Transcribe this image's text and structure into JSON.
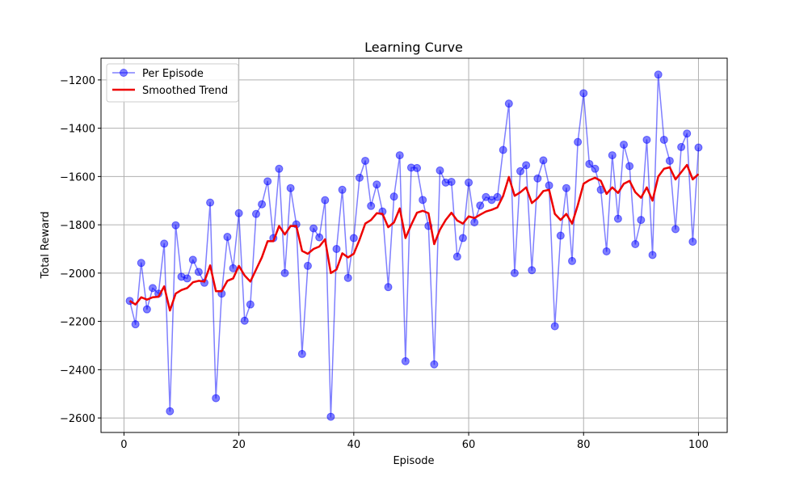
{
  "chart_data": {
    "type": "line",
    "title": "Learning Curve",
    "xlabel": "Episode",
    "ylabel": "Total Reward",
    "xlim": [
      -4,
      105
    ],
    "ylim": [
      -2660,
      -1110
    ],
    "xticks": [
      0,
      20,
      40,
      60,
      80,
      100
    ],
    "yticks": [
      -2600,
      -2400,
      -2200,
      -2000,
      -1800,
      -1600,
      -1400,
      -1200
    ],
    "grid": true,
    "legend": "top-left",
    "x": [
      1,
      2,
      3,
      4,
      5,
      6,
      7,
      8,
      9,
      10,
      11,
      12,
      13,
      14,
      15,
      16,
      17,
      18,
      19,
      20,
      21,
      22,
      23,
      24,
      25,
      26,
      27,
      28,
      29,
      30,
      31,
      32,
      33,
      34,
      35,
      36,
      37,
      38,
      39,
      40,
      41,
      42,
      43,
      44,
      45,
      46,
      47,
      48,
      49,
      50,
      51,
      52,
      53,
      54,
      55,
      56,
      57,
      58,
      59,
      60,
      61,
      62,
      63,
      64,
      65,
      66,
      67,
      68,
      69,
      70,
      71,
      72,
      73,
      74,
      75,
      76,
      77,
      78,
      79,
      80,
      81,
      82,
      83,
      84,
      85,
      86,
      87,
      88,
      89,
      90,
      91,
      92,
      93,
      94,
      95,
      96,
      97,
      98,
      99,
      100
    ],
    "series": [
      {
        "name": "Per Episode",
        "color": "#0000ff",
        "style": "line-markers",
        "values": [
          -2115,
          -2212,
          -1958,
          -2150,
          -2062,
          -2085,
          -1878,
          -2572,
          -1802,
          -2015,
          -2022,
          -1945,
          -1995,
          -2040,
          -1708,
          -2518,
          -2085,
          -1850,
          -1980,
          -1752,
          -2197,
          -2130,
          -1755,
          -1715,
          -1620,
          -1855,
          -1568,
          -2000,
          -1648,
          -1798,
          -2335,
          -1970,
          -1815,
          -1852,
          -1698,
          -2595,
          -1900,
          -1655,
          -2020,
          -1855,
          -1605,
          -1535,
          -1722,
          -1633,
          -1745,
          -2058,
          -1683,
          -1512,
          -2365,
          -1563,
          -1565,
          -1697,
          -1805,
          -2378,
          -1575,
          -1625,
          -1622,
          -1932,
          -1855,
          -1625,
          -1790,
          -1720,
          -1685,
          -1697,
          -1685,
          -1490,
          -1298,
          -2000,
          -1578,
          -1553,
          -1988,
          -1608,
          -1533,
          -1637,
          -2220,
          -1845,
          -1648,
          -1950,
          -1457,
          -1255,
          -1548,
          -1568,
          -1655,
          -1910,
          -1512,
          -1775,
          -1468,
          -1557,
          -1880,
          -1780,
          -1448,
          -1925,
          -1178,
          -1448,
          -1535,
          -1818,
          -1478,
          -1422,
          -1870,
          -1480
        ]
      },
      {
        "name": "Smoothed Trend",
        "color": "#ee0000",
        "style": "line",
        "values": [
          -2115,
          -2130,
          -2100,
          -2110,
          -2100,
          -2098,
          -2055,
          -2155,
          -2085,
          -2070,
          -2062,
          -2038,
          -2032,
          -2035,
          -1968,
          -2075,
          -2075,
          -2032,
          -2022,
          -1970,
          -2010,
          -2035,
          -1985,
          -1935,
          -1868,
          -1868,
          -1805,
          -1840,
          -1805,
          -1805,
          -1908,
          -1920,
          -1900,
          -1890,
          -1860,
          -2000,
          -1985,
          -1918,
          -1935,
          -1920,
          -1862,
          -1795,
          -1780,
          -1752,
          -1755,
          -1810,
          -1790,
          -1732,
          -1855,
          -1800,
          -1750,
          -1742,
          -1752,
          -1880,
          -1820,
          -1780,
          -1750,
          -1782,
          -1795,
          -1765,
          -1772,
          -1758,
          -1745,
          -1738,
          -1728,
          -1680,
          -1602,
          -1680,
          -1665,
          -1645,
          -1710,
          -1690,
          -1660,
          -1655,
          -1755,
          -1780,
          -1755,
          -1795,
          -1718,
          -1630,
          -1615,
          -1605,
          -1618,
          -1672,
          -1645,
          -1668,
          -1630,
          -1618,
          -1665,
          -1688,
          -1645,
          -1700,
          -1600,
          -1568,
          -1562,
          -1612,
          -1582,
          -1552,
          -1612,
          -1590
        ]
      }
    ]
  }
}
